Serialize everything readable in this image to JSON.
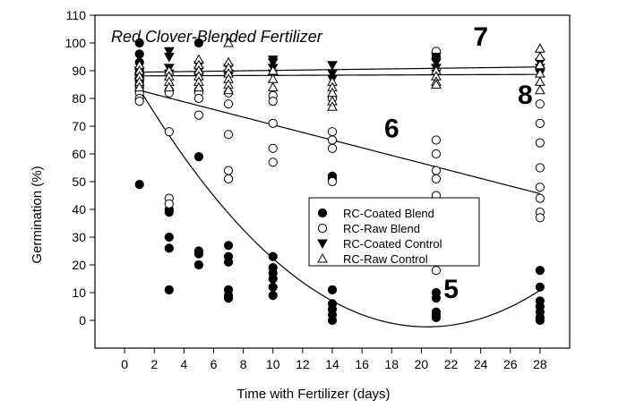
{
  "chart_data": {
    "type": "scatter",
    "title": "Red Clover-Blended Fertilizer",
    "xlabel": "Time with Fertilizer (days)",
    "ylabel": "Germination (%)",
    "xlim": [
      -2,
      30
    ],
    "ylim": [
      -10,
      110
    ],
    "xticks": [
      0,
      2,
      4,
      6,
      8,
      10,
      12,
      14,
      16,
      18,
      20,
      22,
      24,
      26,
      28
    ],
    "yticks": [
      0,
      10,
      20,
      30,
      40,
      50,
      60,
      70,
      80,
      90,
      100,
      110
    ],
    "grid": false,
    "legend_position": "center-right",
    "series": [
      {
        "name": "RC-Coated Blend",
        "marker": "filled-circle",
        "points": [
          [
            1,
            100
          ],
          [
            1,
            96
          ],
          [
            1,
            93
          ],
          [
            1,
            90
          ],
          [
            1,
            88
          ],
          [
            1,
            86
          ],
          [
            1,
            84
          ],
          [
            1,
            49
          ],
          [
            3,
            83
          ],
          [
            3,
            40
          ],
          [
            3,
            39
          ],
          [
            3,
            30
          ],
          [
            3,
            26
          ],
          [
            3,
            11
          ],
          [
            5,
            100
          ],
          [
            5,
            83
          ],
          [
            5,
            59
          ],
          [
            5,
            25
          ],
          [
            5,
            24
          ],
          [
            5,
            20
          ],
          [
            7,
            27
          ],
          [
            7,
            23
          ],
          [
            7,
            21
          ],
          [
            7,
            11
          ],
          [
            7,
            9
          ],
          [
            7,
            8
          ],
          [
            10,
            23
          ],
          [
            10,
            19
          ],
          [
            10,
            17
          ],
          [
            10,
            15
          ],
          [
            10,
            12
          ],
          [
            10,
            9
          ],
          [
            14,
            52
          ],
          [
            14,
            51
          ],
          [
            14,
            11
          ],
          [
            14,
            6
          ],
          [
            14,
            4
          ],
          [
            14,
            2
          ],
          [
            14,
            0
          ],
          [
            21,
            95
          ],
          [
            21,
            10
          ],
          [
            21,
            8
          ],
          [
            21,
            3
          ],
          [
            21,
            2
          ],
          [
            21,
            1
          ],
          [
            28,
            18
          ],
          [
            28,
            12
          ],
          [
            28,
            7
          ],
          [
            28,
            5
          ],
          [
            28,
            3
          ],
          [
            28,
            1
          ],
          [
            28,
            0
          ]
        ]
      },
      {
        "name": "RC-Raw Blend",
        "marker": "open-circle",
        "points": [
          [
            1,
            85
          ],
          [
            1,
            82
          ],
          [
            1,
            80
          ],
          [
            1,
            79
          ],
          [
            3,
            68
          ],
          [
            3,
            44
          ],
          [
            3,
            42
          ],
          [
            3,
            82
          ],
          [
            5,
            82
          ],
          [
            5,
            74
          ],
          [
            5,
            80
          ],
          [
            7,
            82
          ],
          [
            7,
            78
          ],
          [
            7,
            67
          ],
          [
            7,
            54
          ],
          [
            7,
            51
          ],
          [
            10,
            81
          ],
          [
            10,
            79
          ],
          [
            10,
            71
          ],
          [
            10,
            62
          ],
          [
            10,
            57
          ],
          [
            14,
            68
          ],
          [
            14,
            65
          ],
          [
            14,
            62
          ],
          [
            14,
            50
          ],
          [
            14,
            80
          ],
          [
            21,
            97
          ],
          [
            21,
            65
          ],
          [
            21,
            60
          ],
          [
            21,
            54
          ],
          [
            21,
            51
          ],
          [
            21,
            45
          ],
          [
            21,
            18
          ],
          [
            28,
            78
          ],
          [
            28,
            71
          ],
          [
            28,
            64
          ],
          [
            28,
            55
          ],
          [
            28,
            48
          ],
          [
            28,
            44
          ],
          [
            28,
            39
          ],
          [
            28,
            37
          ]
        ]
      },
      {
        "name": "RC-Coated Control",
        "marker": "filled-triangle-down",
        "points": [
          [
            1,
            90
          ],
          [
            1,
            88
          ],
          [
            1,
            86
          ],
          [
            3,
            97
          ],
          [
            3,
            95
          ],
          [
            3,
            91
          ],
          [
            3,
            89
          ],
          [
            5,
            92
          ],
          [
            5,
            90
          ],
          [
            5,
            88
          ],
          [
            7,
            91
          ],
          [
            7,
            89
          ],
          [
            7,
            88
          ],
          [
            10,
            94
          ],
          [
            10,
            93
          ],
          [
            10,
            91
          ],
          [
            10,
            89
          ],
          [
            14,
            92
          ],
          [
            14,
            89
          ],
          [
            14,
            87
          ],
          [
            21,
            95
          ],
          [
            21,
            93
          ],
          [
            21,
            91
          ],
          [
            21,
            89
          ],
          [
            28,
            93
          ],
          [
            28,
            91
          ],
          [
            28,
            90
          ],
          [
            28,
            89
          ]
        ]
      },
      {
        "name": "RC-Raw Control",
        "marker": "open-triangle-up",
        "points": [
          [
            1,
            92
          ],
          [
            1,
            90
          ],
          [
            1,
            88
          ],
          [
            1,
            86
          ],
          [
            1,
            84
          ],
          [
            3,
            90
          ],
          [
            3,
            88
          ],
          [
            3,
            86
          ],
          [
            3,
            84
          ],
          [
            5,
            94
          ],
          [
            5,
            92
          ],
          [
            5,
            90
          ],
          [
            5,
            88
          ],
          [
            5,
            86
          ],
          [
            5,
            84
          ],
          [
            7,
            100
          ],
          [
            7,
            93
          ],
          [
            7,
            91
          ],
          [
            7,
            89
          ],
          [
            7,
            87
          ],
          [
            7,
            85
          ],
          [
            7,
            83
          ],
          [
            10,
            90
          ],
          [
            10,
            87
          ],
          [
            10,
            84
          ],
          [
            14,
            86
          ],
          [
            14,
            84
          ],
          [
            14,
            82
          ],
          [
            14,
            79
          ],
          [
            14,
            77
          ],
          [
            21,
            90
          ],
          [
            21,
            88
          ],
          [
            21,
            86
          ],
          [
            21,
            85
          ],
          [
            28,
            98
          ],
          [
            28,
            95
          ],
          [
            28,
            92
          ],
          [
            28,
            89
          ],
          [
            28,
            86
          ],
          [
            28,
            83
          ]
        ]
      }
    ],
    "fit_lines": [
      {
        "label": "5",
        "coef": [
          92.5,
          -9.3,
          0.228
        ],
        "x_range": [
          1,
          28
        ],
        "label_pos": [
          21.5,
          8
        ]
      },
      {
        "label": "6",
        "coef": [
          84.3,
          -1.38,
          0
        ],
        "x_range": [
          1,
          28
        ],
        "label_pos": [
          17.5,
          66
        ]
      },
      {
        "label": "7",
        "coef": [
          89.4,
          0.07,
          0
        ],
        "x_range": [
          1,
          28
        ],
        "label_pos": [
          23.5,
          99
        ]
      },
      {
        "label": "8",
        "coef": [
          88.1,
          0.02,
          0
        ],
        "x_range": [
          1,
          28
        ],
        "label_pos": [
          26.5,
          78
        ]
      }
    ]
  }
}
